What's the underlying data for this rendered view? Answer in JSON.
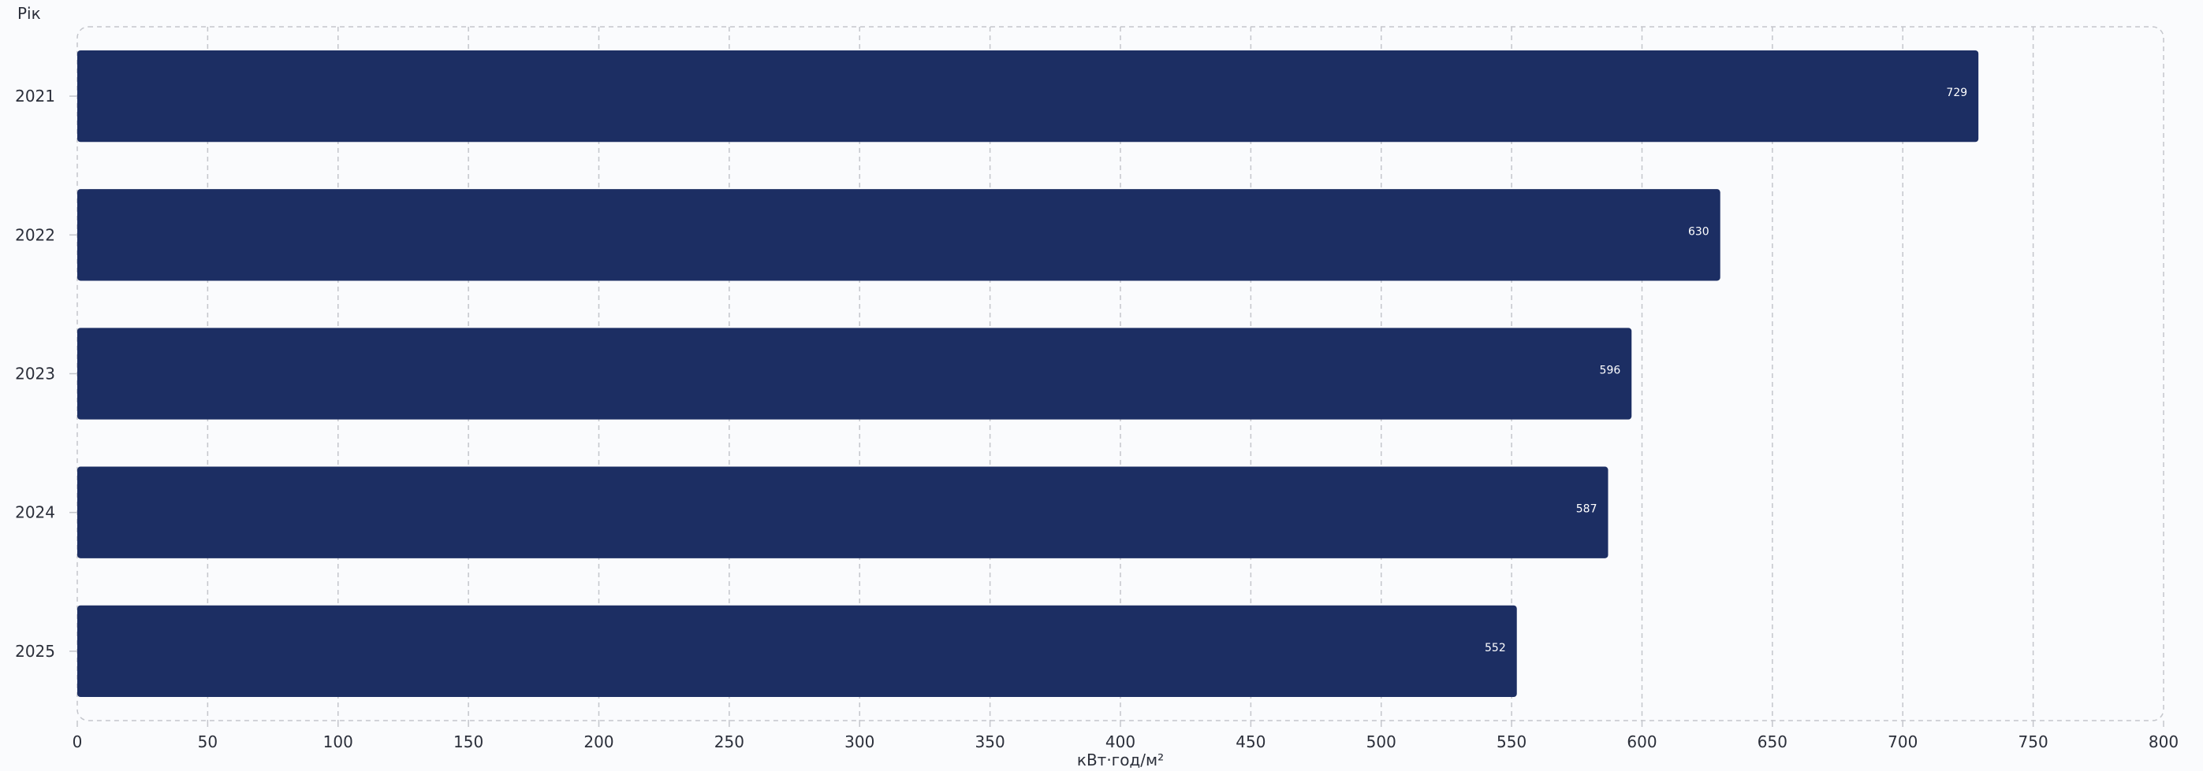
{
  "chart_data": {
    "type": "bar",
    "orientation": "horizontal",
    "categories": [
      "2021",
      "2022",
      "2023",
      "2024",
      "2025"
    ],
    "values": [
      729,
      630,
      596,
      587,
      552
    ],
    "data_labels": [
      "729",
      "630",
      "596",
      "587",
      "552"
    ],
    "xlabel": "кВт·год/м²",
    "ylabel": "Рік",
    "xlim": [
      0,
      800
    ],
    "xticks": [
      0,
      50,
      100,
      150,
      200,
      250,
      300,
      350,
      400,
      450,
      500,
      550,
      600,
      650,
      700,
      750,
      800
    ],
    "grid": true,
    "bar_color": "#1c2e63"
  }
}
